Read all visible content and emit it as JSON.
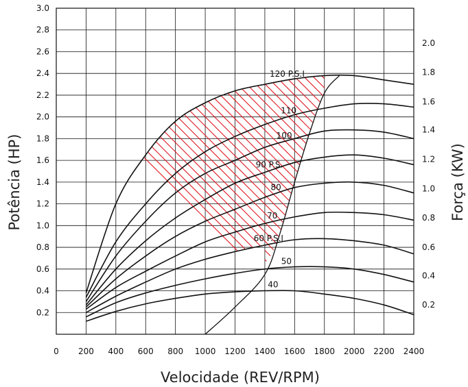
{
  "chart_data": {
    "type": "line",
    "title": "",
    "xlabel": "Velocidade (REV/RPM)",
    "ylabel": "Potência (HP)",
    "y2label": "Força (KW)",
    "xlim": [
      0,
      2400
    ],
    "ylim": [
      0,
      3.0
    ],
    "grid": true,
    "x_ticks": [
      "0",
      "200",
      "400",
      "600",
      "800",
      "1000",
      "1200",
      "1400",
      "1600",
      "1800",
      "2000",
      "2200",
      "2400"
    ],
    "y_ticks": [
      "0.2",
      "0.4",
      "0.6",
      "0.8",
      "1.0",
      "1.2",
      "1.4",
      "1.6",
      "1.8",
      "2.0",
      "2.2",
      "2.4",
      "2.6",
      "2.8",
      "3.0"
    ],
    "y2_ticks": [
      {
        "label": "0.2",
        "hp": 0.27
      },
      {
        "label": "0.4",
        "hp": 0.54
      },
      {
        "label": "0.6",
        "hp": 0.8
      },
      {
        "label": "0.8",
        "hp": 1.07
      },
      {
        "label": "1.0",
        "hp": 1.34
      },
      {
        "label": "1.2",
        "hp": 1.61
      },
      {
        "label": "1.4",
        "hp": 1.88
      },
      {
        "label": "1.6",
        "hp": 2.14
      },
      {
        "label": "1.8",
        "hp": 2.41
      },
      {
        "label": "2.0",
        "hp": 2.68
      }
    ],
    "series": [
      {
        "name": "120 P.S.I",
        "x": [
          200,
          400,
          600,
          800,
          1000,
          1200,
          1400,
          1600,
          1800,
          2000,
          2200,
          2400
        ],
        "y": [
          0.38,
          1.2,
          1.65,
          1.96,
          2.13,
          2.24,
          2.3,
          2.35,
          2.38,
          2.38,
          2.34,
          2.3
        ]
      },
      {
        "name": "110",
        "x": [
          200,
          400,
          600,
          800,
          1000,
          1200,
          1400,
          1600,
          1800,
          2000,
          2200,
          2400
        ],
        "y": [
          0.34,
          0.85,
          1.2,
          1.48,
          1.68,
          1.82,
          1.93,
          2.02,
          2.08,
          2.12,
          2.12,
          2.09
        ]
      },
      {
        "name": "100",
        "x": [
          200,
          400,
          600,
          800,
          1000,
          1200,
          1400,
          1600,
          1800,
          2000,
          2200,
          2400
        ],
        "y": [
          0.3,
          0.72,
          1.04,
          1.3,
          1.48,
          1.6,
          1.72,
          1.8,
          1.87,
          1.88,
          1.86,
          1.8
        ]
      },
      {
        "name": "90 P.S.",
        "x": [
          200,
          400,
          600,
          800,
          1000,
          1200,
          1400,
          1600,
          1800,
          2000,
          2200,
          2400
        ],
        "y": [
          0.27,
          0.6,
          0.86,
          1.07,
          1.24,
          1.39,
          1.49,
          1.58,
          1.63,
          1.65,
          1.62,
          1.56
        ]
      },
      {
        "name": "80",
        "x": [
          200,
          400,
          600,
          800,
          1000,
          1200,
          1400,
          1600,
          1800,
          2000,
          2200,
          2400
        ],
        "y": [
          0.25,
          0.51,
          0.72,
          0.9,
          1.04,
          1.15,
          1.26,
          1.35,
          1.39,
          1.4,
          1.37,
          1.3
        ]
      },
      {
        "name": "70",
        "x": [
          200,
          400,
          600,
          800,
          1000,
          1200,
          1400,
          1600,
          1800,
          2000,
          2200,
          2400
        ],
        "y": [
          0.23,
          0.43,
          0.58,
          0.72,
          0.85,
          0.94,
          1.02,
          1.08,
          1.12,
          1.12,
          1.1,
          1.05
        ]
      },
      {
        "name": "60 P.S.I",
        "x": [
          200,
          400,
          600,
          800,
          1000,
          1200,
          1400,
          1600,
          1800,
          2000,
          2200,
          2400
        ],
        "y": [
          0.2,
          0.35,
          0.48,
          0.6,
          0.69,
          0.76,
          0.82,
          0.87,
          0.88,
          0.86,
          0.82,
          0.74
        ]
      },
      {
        "name": "50",
        "x": [
          200,
          400,
          600,
          800,
          1000,
          1200,
          1400,
          1600,
          1800,
          2000,
          2200,
          2400
        ],
        "y": [
          0.16,
          0.29,
          0.38,
          0.45,
          0.51,
          0.56,
          0.6,
          0.62,
          0.62,
          0.6,
          0.55,
          0.48
        ]
      },
      {
        "name": "40",
        "x": [
          200,
          400,
          600,
          800,
          1000,
          1200,
          1400,
          1600,
          1800,
          2000,
          2200,
          2400
        ],
        "y": [
          0.12,
          0.21,
          0.28,
          0.33,
          0.37,
          0.39,
          0.4,
          0.4,
          0.37,
          0.33,
          0.27,
          0.18
        ]
      }
    ],
    "boundary_curve": {
      "x": [
        1000,
        1200,
        1400,
        1500,
        1600,
        1700,
        1800,
        1900
      ],
      "y": [
        0,
        0.25,
        0.55,
        0.92,
        1.4,
        1.85,
        2.22,
        2.38
      ]
    },
    "hatched_region": {
      "upper": {
        "x": [
          200,
          400,
          600,
          800,
          1000,
          1200,
          1400,
          1600,
          1800
        ],
        "y": [
          0.38,
          1.2,
          1.65,
          1.96,
          2.13,
          2.24,
          2.3,
          2.35,
          2.38
        ]
      },
      "lower": {
        "x": [
          200,
          400,
          600,
          800,
          1000,
          1200,
          1400
        ],
        "y": [
          0.2,
          0.35,
          0.48,
          0.6,
          0.69,
          0.76,
          0.82
        ]
      },
      "right": {
        "x": [
          1400,
          1450,
          1500,
          1600,
          1700,
          1800
        ],
        "y": [
          0.65,
          0.75,
          0.92,
          1.4,
          1.85,
          2.22
        ]
      }
    },
    "colors": {
      "curves": "#111111",
      "grid": "#111111",
      "hatch": "#e0141e"
    }
  }
}
